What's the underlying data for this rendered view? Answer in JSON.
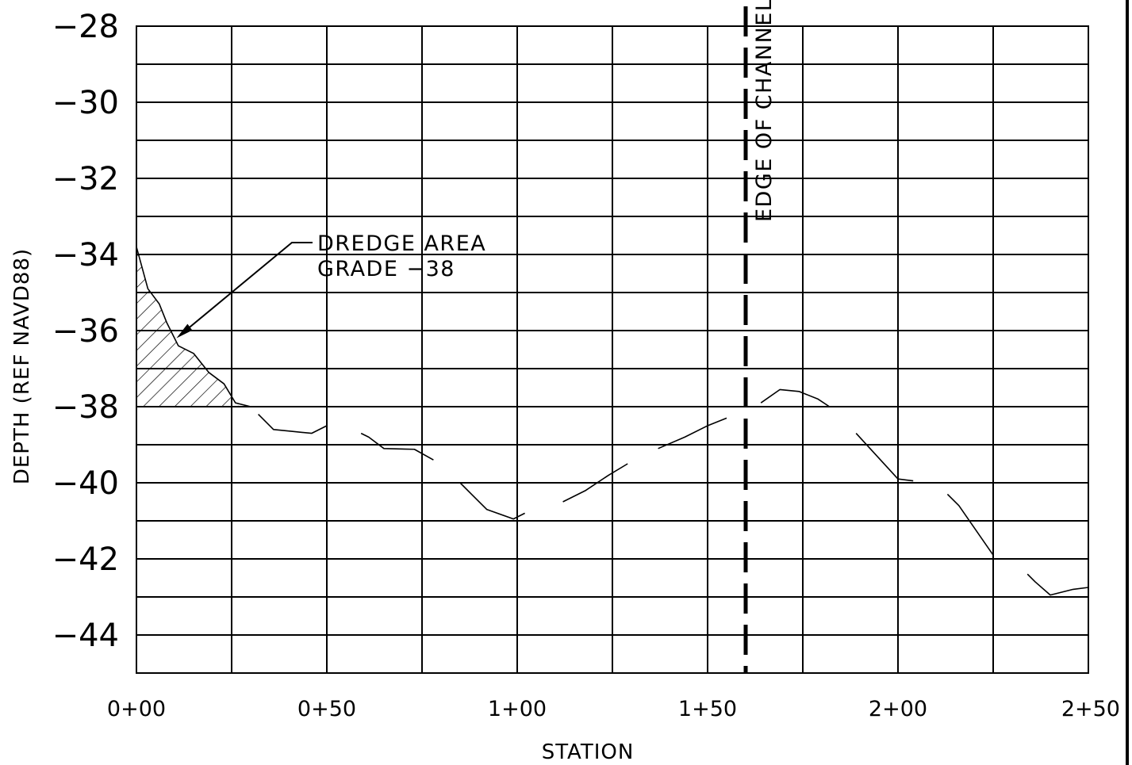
{
  "chart_data": {
    "type": "line",
    "xlabel": "STATION",
    "ylabel": "DEPTH (REF NAVD88)",
    "xlim": [
      0,
      250
    ],
    "ylim": [
      -45,
      -28
    ],
    "x_ticks": [
      {
        "value": 0,
        "label": "0+00"
      },
      {
        "value": 50,
        "label": "0+50"
      },
      {
        "value": 100,
        "label": "1+00"
      },
      {
        "value": 150,
        "label": "1+50"
      },
      {
        "value": 200,
        "label": "2+00"
      },
      {
        "value": 250,
        "label": "2+50"
      }
    ],
    "y_ticks": [
      {
        "value": -28,
        "label": "−28"
      },
      {
        "value": -30,
        "label": "−30"
      },
      {
        "value": -32,
        "label": "−32"
      },
      {
        "value": -34,
        "label": "−34"
      },
      {
        "value": -36,
        "label": "−36"
      },
      {
        "value": -38,
        "label": "−38"
      },
      {
        "value": -40,
        "label": "−40"
      },
      {
        "value": -42,
        "label": "−42"
      },
      {
        "value": -44,
        "label": "−44"
      }
    ],
    "grid": true,
    "x_grid_step": 25,
    "y_grid_step": 1,
    "series": [
      {
        "line_style": "dashed-segments",
        "segments": [
          [
            [
              0,
              -33.8
            ],
            [
              3,
              -34.9
            ],
            [
              6,
              -35.3
            ],
            [
              8,
              -35.8
            ],
            [
              11,
              -36.4
            ],
            [
              15,
              -36.6
            ],
            [
              19,
              -37.1
            ],
            [
              23,
              -37.4
            ],
            [
              26,
              -37.9
            ],
            [
              30,
              -38.0
            ]
          ],
          [
            [
              32,
              -38.2
            ],
            [
              36,
              -38.6
            ],
            [
              41,
              -38.65
            ],
            [
              46,
              -38.7
            ],
            [
              50,
              -38.5
            ]
          ],
          [
            [
              59,
              -38.7
            ],
            [
              61,
              -38.8
            ],
            [
              65,
              -39.1
            ],
            [
              73,
              -39.12
            ],
            [
              78,
              -39.4
            ]
          ],
          [
            [
              85,
              -40.0
            ],
            [
              88,
              -40.3
            ],
            [
              92,
              -40.7
            ],
            [
              99,
              -40.95
            ],
            [
              102,
              -40.8
            ]
          ],
          [
            [
              112,
              -40.5
            ],
            [
              118,
              -40.2
            ],
            [
              124,
              -39.8
            ],
            [
              129,
              -39.5
            ]
          ],
          [
            [
              137,
              -39.1
            ],
            [
              144,
              -38.8
            ],
            [
              150,
              -38.5
            ],
            [
              155,
              -38.3
            ]
          ],
          [
            [
              164,
              -37.9
            ],
            [
              169,
              -37.55
            ],
            [
              174,
              -37.6
            ],
            [
              179,
              -37.8
            ],
            [
              182,
              -38.0
            ]
          ],
          [
            [
              189,
              -38.7
            ],
            [
              200,
              -39.9
            ],
            [
              204,
              -39.95
            ]
          ],
          [
            [
              213,
              -40.3
            ],
            [
              216,
              -40.6
            ],
            [
              225,
              -41.9
            ]
          ],
          [
            [
              234,
              -42.4
            ],
            [
              236,
              -42.6
            ],
            [
              240,
              -42.95
            ],
            [
              246,
              -42.8
            ],
            [
              250,
              -42.75
            ]
          ]
        ]
      }
    ],
    "dredge_area": {
      "grade": -38,
      "polygon": [
        [
          0,
          -33.8
        ],
        [
          3,
          -34.9
        ],
        [
          6,
          -35.3
        ],
        [
          8,
          -35.8
        ],
        [
          11,
          -36.4
        ],
        [
          15,
          -36.6
        ],
        [
          19,
          -37.1
        ],
        [
          23,
          -37.4
        ],
        [
          26,
          -37.9
        ],
        [
          27,
          -38
        ],
        [
          0,
          -38
        ]
      ]
    },
    "edge_of_channel_x": 160,
    "annotations": {
      "dredge_line1": "DREDGE AREA",
      "dredge_line2": "GRADE −38",
      "channel_label": "EDGE OF CHANNEL"
    }
  }
}
